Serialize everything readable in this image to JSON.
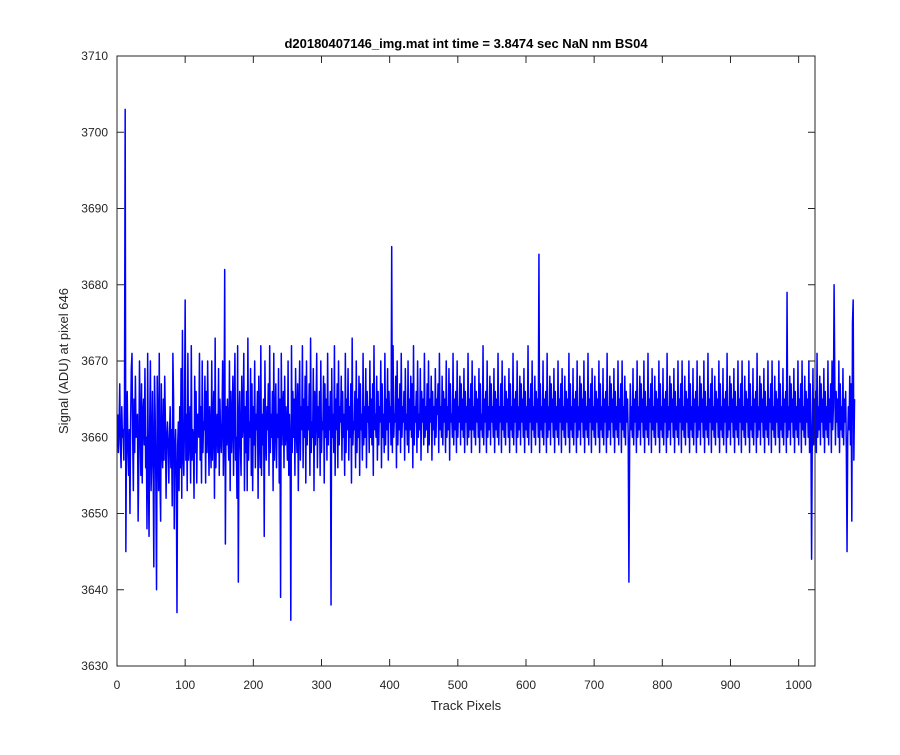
{
  "chart_data": {
    "type": "line",
    "title": "d20180407146_img.mat int time = 3.8474 sec  NaN nm BS04",
    "xlabel": "Track Pixels",
    "ylabel": "Signal (ADU) at pixel 646",
    "xlim": [
      0,
      1024
    ],
    "ylim": [
      3630,
      3710
    ],
    "xticks": [
      0,
      100,
      200,
      300,
      400,
      500,
      600,
      700,
      800,
      900,
      1000
    ],
    "yticks": [
      3630,
      3640,
      3650,
      3660,
      3670,
      3680,
      3690,
      3700,
      3710
    ],
    "grid": false,
    "line_color": "#0000ff",
    "series": [
      {
        "x_start": 1,
        "x_step": 1,
        "values": [
          3663,
          3658,
          3661,
          3667,
          3659,
          3656,
          3664,
          3660,
          3661,
          3657,
          3665,
          3703,
          3645,
          3662,
          3666,
          3658,
          3655,
          3661,
          3650,
          3662,
          3669,
          3671,
          3660,
          3653,
          3665,
          3658,
          3668,
          3660,
          3662,
          3663,
          3649,
          3657,
          3670,
          3661,
          3655,
          3667,
          3654,
          3663,
          3665,
          3659,
          3669,
          3656,
          3660,
          3648,
          3671,
          3655,
          3647,
          3662,
          3670,
          3653,
          3657,
          3666,
          3657,
          3643,
          3668,
          3663,
          3654,
          3640,
          3668,
          3661,
          3653,
          3671,
          3655,
          3649,
          3667,
          3659,
          3656,
          3665,
          3657,
          3668,
          3662,
          3652,
          3660,
          3662,
          3659,
          3654,
          3660,
          3664,
          3656,
          3661,
          3651,
          3671,
          3665,
          3648,
          3658,
          3661,
          3655,
          3637,
          3659,
          3662,
          3653,
          3664,
          3656,
          3669,
          3652,
          3674,
          3658,
          3655,
          3662,
          3678,
          3657,
          3663,
          3653,
          3671,
          3657,
          3660,
          3664,
          3654,
          3672,
          3657,
          3661,
          3660,
          3652,
          3668,
          3658,
          3666,
          3654,
          3663,
          3663,
          3660,
          3671,
          3657,
          3664,
          3654,
          3670,
          3658,
          3662,
          3661,
          3668,
          3654,
          3666,
          3658,
          3670,
          3661,
          3655,
          3664,
          3660,
          3656,
          3670,
          3657,
          3662,
          3666,
          3652,
          3673,
          3656,
          3661,
          3663,
          3658,
          3669,
          3655,
          3665,
          3660,
          3658,
          3662,
          3670,
          3655,
          3661,
          3682,
          3646,
          3664,
          3659,
          3665,
          3660,
          3657,
          3670,
          3653,
          3666,
          3658,
          3662,
          3668,
          3655,
          3664,
          3671,
          3657,
          3660,
          3652,
          3672,
          3641,
          3662,
          3666,
          3659,
          3655,
          3668,
          3660,
          3662,
          3671,
          3653,
          3664,
          3658,
          3666,
          3653,
          3673,
          3657,
          3662,
          3660,
          3669,
          3655,
          3667,
          3653,
          3664,
          3659,
          3670,
          3656,
          3663,
          3661,
          3666,
          3652,
          3668,
          3661,
          3656,
          3672,
          3655,
          3663,
          3659,
          3665,
          3647,
          3670,
          3660,
          3657,
          3664,
          3661,
          3667,
          3655,
          3672,
          3658,
          3663,
          3660,
          3666,
          3653,
          3671,
          3657,
          3662,
          3667,
          3656,
          3663,
          3660,
          3669,
          3654,
          3665,
          3639,
          3671,
          3659,
          3663,
          3666,
          3656,
          3668,
          3659,
          3664,
          3661,
          3657,
          3670,
          3655,
          3663,
          3659,
          3636,
          3672,
          3658,
          3666,
          3660,
          3665,
          3655,
          3669,
          3662,
          3658,
          3667,
          3653,
          3664,
          3670,
          3657,
          3664,
          3661,
          3672,
          3656,
          3665,
          3660,
          3668,
          3654,
          3670,
          3659,
          3664,
          3661,
          3667,
          3655,
          3673,
          3658,
          3662,
          3660,
          3669,
          3653,
          3666,
          3659,
          3663,
          3671,
          3656,
          3664,
          3660,
          3666,
          3655,
          3670,
          3658,
          3662,
          3661,
          3668,
          3654,
          3667,
          3660,
          3665,
          3657,
          3671,
          3659,
          3664,
          3661,
          3666,
          3638,
          3669,
          3660,
          3663,
          3658,
          3672,
          3655,
          3665,
          3661,
          3667,
          3656,
          3670,
          3659,
          3664,
          3662,
          3668,
          3657,
          3666,
          3660,
          3663,
          3655,
          3671,
          3658,
          3665,
          3661,
          3669,
          3657,
          3664,
          3660,
          3667,
          3654,
          3673,
          3659,
          3662,
          3661,
          3666,
          3656,
          3670,
          3658,
          3665,
          3660,
          3668,
          3655,
          3667,
          3661,
          3663,
          3657,
          3671,
          3659,
          3664,
          3660,
          3669,
          3656,
          3666,
          3662,
          3664,
          3658,
          3670,
          3660,
          3665,
          3659,
          3667,
          3655,
          3672,
          3661,
          3663,
          3660,
          3668,
          3657,
          3666,
          3659,
          3664,
          3662,
          3670,
          3656,
          3667,
          3660,
          3663,
          3658,
          3671,
          3659,
          3665,
          3661,
          3669,
          3657,
          3666,
          3662,
          3664,
          3659,
          3685,
          3658,
          3672,
          3660,
          3663,
          3662,
          3668,
          3656,
          3670,
          3659,
          3665,
          3661,
          3667,
          3658,
          3671,
          3660,
          3664,
          3662,
          3666,
          3657,
          3669,
          3661,
          3663,
          3659,
          3670,
          3658,
          3665,
          3661,
          3668,
          3660,
          3667,
          3656,
          3672,
          3659,
          3664,
          3662,
          3666,
          3658,
          3670,
          3660,
          3663,
          3661,
          3669,
          3657,
          3666,
          3662,
          3665,
          3659,
          3671,
          3660,
          3664,
          3661,
          3667,
          3658,
          3670,
          3659,
          3665,
          3662,
          3668,
          3657,
          3666,
          3661,
          3664,
          3659,
          3669,
          3660,
          3665,
          3663,
          3667,
          3658,
          3671,
          3661,
          3664,
          3660,
          3668,
          3659,
          3666,
          3662,
          3665,
          3658,
          3670,
          3660,
          3664,
          3661,
          3669,
          3657,
          3667,
          3662,
          3663,
          3660,
          3671,
          3659,
          3665,
          3661,
          3666,
          3658,
          3670,
          3660,
          3664,
          3662,
          3668,
          3659,
          3667,
          3661,
          3665,
          3660,
          3669,
          3658,
          3666,
          3662,
          3664,
          3659,
          3671,
          3660,
          3665,
          3661,
          3667,
          3658,
          3670,
          3661,
          3664,
          3660,
          3668,
          3659,
          3666,
          3662,
          3665,
          3660,
          3669,
          3658,
          3667,
          3661,
          3663,
          3660,
          3672,
          3659,
          3665,
          3662,
          3666,
          3658,
          3670,
          3660,
          3664,
          3661,
          3668,
          3659,
          3667,
          3662,
          3664,
          3660,
          3669,
          3658,
          3666,
          3661,
          3665,
          3660,
          3671,
          3659,
          3664,
          3662,
          3667,
          3658,
          3670,
          3661,
          3664,
          3660,
          3668,
          3659,
          3666,
          3662,
          3665,
          3660,
          3669,
          3658,
          3667,
          3661,
          3664,
          3660,
          3671,
          3659,
          3665,
          3662,
          3666,
          3658,
          3670,
          3660,
          3664,
          3661,
          3668,
          3659,
          3667,
          3662,
          3665,
          3660,
          3669,
          3658,
          3666,
          3661,
          3664,
          3660,
          3672,
          3659,
          3665,
          3662,
          3667,
          3658,
          3670,
          3661,
          3664,
          3660,
          3668,
          3659,
          3666,
          3662,
          3665,
          3660,
          3684,
          3658,
          3667,
          3661,
          3664,
          3660,
          3670,
          3659,
          3665,
          3662,
          3666,
          3658,
          3671,
          3660,
          3664,
          3661,
          3668,
          3659,
          3667,
          3662,
          3665,
          3660,
          3669,
          3658,
          3666,
          3661,
          3664,
          3660,
          3670,
          3659,
          3665,
          3662,
          3667,
          3658,
          3669,
          3661,
          3664,
          3660,
          3668,
          3659,
          3666,
          3662,
          3665,
          3660,
          3671,
          3658,
          3667,
          3661,
          3664,
          3660,
          3669,
          3659,
          3665,
          3662,
          3666,
          3658,
          3670,
          3660,
          3664,
          3661,
          3668,
          3659,
          3667,
          3662,
          3665,
          3660,
          3670,
          3658,
          3666,
          3661,
          3664,
          3660,
          3671,
          3659,
          3665,
          3662,
          3667,
          3658,
          3669,
          3661,
          3664,
          3660,
          3668,
          3659,
          3666,
          3662,
          3665,
          3660,
          3670,
          3658,
          3667,
          3661,
          3664,
          3660,
          3669,
          3659,
          3665,
          3662,
          3666,
          3658,
          3671,
          3660,
          3664,
          3661,
          3668,
          3659,
          3667,
          3662,
          3665,
          3660,
          3669,
          3658,
          3666,
          3661,
          3664,
          3660,
          3670,
          3659,
          3665,
          3662,
          3667,
          3658,
          3670,
          3661,
          3664,
          3660,
          3668,
          3659,
          3666,
          3662,
          3665,
          3660,
          3641,
          3658,
          3667,
          3661,
          3664,
          3660,
          3669,
          3659,
          3665,
          3662,
          3666,
          3658,
          3670,
          3660,
          3664,
          3661,
          3668,
          3659,
          3667,
          3662,
          3665,
          3660,
          3670,
          3658,
          3666,
          3661,
          3664,
          3660,
          3671,
          3659,
          3665,
          3662,
          3667,
          3658,
          3669,
          3661,
          3664,
          3660,
          3668,
          3659,
          3666,
          3662,
          3665,
          3660,
          3670,
          3658,
          3667,
          3661,
          3664,
          3660,
          3669,
          3659,
          3665,
          3662,
          3666,
          3658,
          3671,
          3660,
          3664,
          3661,
          3668,
          3659,
          3667,
          3662,
          3665,
          3660,
          3669,
          3658,
          3666,
          3661,
          3664,
          3660,
          3670,
          3659,
          3665,
          3662,
          3667,
          3658,
          3670,
          3661,
          3664,
          3660,
          3668,
          3659,
          3666,
          3662,
          3665,
          3660,
          3670,
          3658,
          3667,
          3661,
          3664,
          3660,
          3669,
          3659,
          3665,
          3662,
          3666,
          3658,
          3670,
          3660,
          3664,
          3661,
          3668,
          3659,
          3667,
          3662,
          3665,
          3660,
          3670,
          3658,
          3666,
          3661,
          3664,
          3660,
          3671,
          3659,
          3665,
          3662,
          3667,
          3658,
          3669,
          3661,
          3664,
          3660,
          3668,
          3659,
          3666,
          3662,
          3665,
          3660,
          3670,
          3658,
          3667,
          3661,
          3664,
          3660,
          3669,
          3659,
          3665,
          3662,
          3666,
          3658,
          3671,
          3660,
          3664,
          3661,
          3668,
          3659,
          3667,
          3662,
          3665,
          3660,
          3669,
          3658,
          3666,
          3661,
          3664,
          3660,
          3670,
          3659,
          3665,
          3662,
          3667,
          3658,
          3670,
          3661,
          3664,
          3660,
          3668,
          3659,
          3666,
          3662,
          3665,
          3660,
          3670,
          3658,
          3667,
          3661,
          3664,
          3660,
          3669,
          3659,
          3665,
          3662,
          3666,
          3658,
          3671,
          3660,
          3664,
          3661,
          3668,
          3659,
          3667,
          3662,
          3665,
          3660,
          3669,
          3658,
          3666,
          3661,
          3664,
          3660,
          3670,
          3659,
          3665,
          3662,
          3667,
          3658,
          3670,
          3661,
          3664,
          3660,
          3668,
          3659,
          3666,
          3662,
          3665,
          3660,
          3670,
          3658,
          3667,
          3661,
          3664,
          3660,
          3669,
          3659,
          3665,
          3662,
          3666,
          3658,
          3679,
          3660,
          3664,
          3661,
          3668,
          3659,
          3667,
          3662,
          3665,
          3660,
          3669,
          3658,
          3666,
          3661,
          3664,
          3660,
          3670,
          3659,
          3665,
          3662,
          3667,
          3658,
          3670,
          3661,
          3664,
          3660,
          3668,
          3659,
          3666,
          3662,
          3665,
          3660,
          3670,
          3658,
          3667,
          3661,
          3644,
          3660,
          3669,
          3659,
          3665,
          3662,
          3666,
          3658,
          3671,
          3660,
          3664,
          3661,
          3668,
          3659,
          3667,
          3662,
          3665,
          3660,
          3669,
          3658,
          3666,
          3661,
          3664,
          3660,
          3670,
          3659,
          3665,
          3662,
          3667,
          3658,
          3670,
          3661,
          3664,
          3680,
          3668,
          3659,
          3666,
          3662,
          3665,
          3660,
          3670,
          3658,
          3667,
          3661,
          3664,
          3660,
          3669,
          3659,
          3665,
          3662,
          3666,
          3658,
          3645,
          3660,
          3664,
          3661,
          3668,
          3659,
          3667,
          3649,
          3675,
          3678,
          3657,
          3665
        ]
      }
    ]
  }
}
